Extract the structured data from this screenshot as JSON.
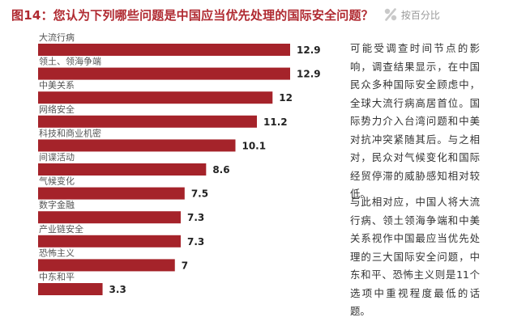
{
  "header": {
    "title": "图14：您认为下列哪些问题是中国应当优先处理的国际安全问题？",
    "unit": "按百分比",
    "unit_icon": "percent-icon"
  },
  "colors": {
    "bar": "#a5232a",
    "title": "#b02a31"
  },
  "chart_data": {
    "type": "bar",
    "orientation": "horizontal",
    "title": "图14：您认为下列哪些问题是中国应当优先处理的国际安全问题？",
    "unit": "按百分比",
    "categories": [
      "大流行病",
      "领土、领海争端",
      "中美关系",
      "网络安全",
      "科技和商业机密",
      "间谍活动",
      "气候变化",
      "数字金融",
      "产业链安全",
      "恐怖主义",
      "中东和平"
    ],
    "values": [
      12.9,
      12.9,
      12,
      11.2,
      10.1,
      8.6,
      7.5,
      7.3,
      7.3,
      7,
      3.3
    ],
    "value_labels": [
      "12.9",
      "12.9",
      "12",
      "11.2",
      "10.1",
      "8.6",
      "7.5",
      "7.3",
      "7.3",
      "7",
      "3.3"
    ],
    "xlim": [
      0,
      12.9
    ],
    "grid": false,
    "legend": "none"
  },
  "commentary": {
    "paragraph_1": "可能受调查时间节点的影响，调查结果显示，在中国民众多种国际安全顾虑中，全球大流行病高居首位。国际势力介入台湾问题和中美对抗冲突紧随其后。与之相对，民众对气候变化和国际经贸停滞的威胁感知相对较低。",
    "paragraph_2": "与此相对应，中国人将大流行病、领土领海争端和中美关系视作中国最应当优先处理的三大国际安全问题，中东和平、恐怖主义则是11个选项中重视程度最低的话题。"
  }
}
